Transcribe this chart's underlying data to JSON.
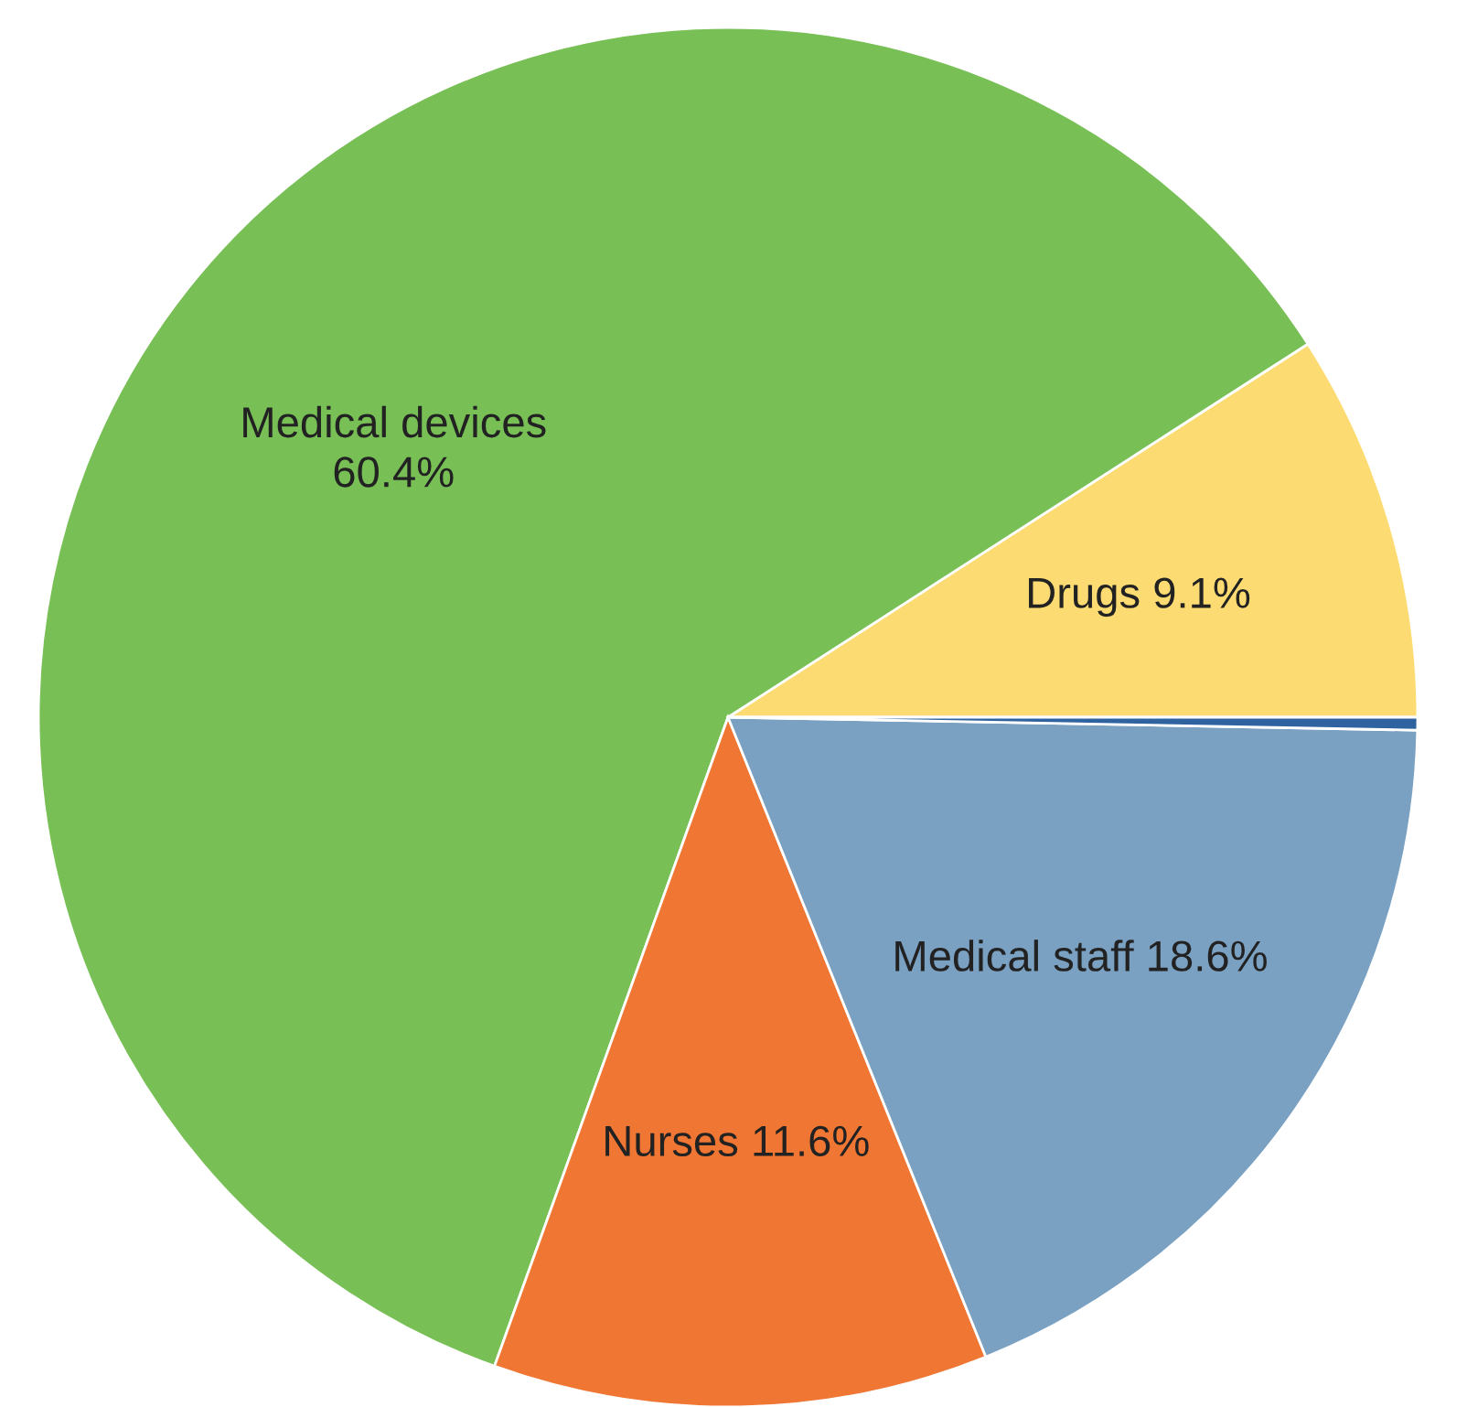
{
  "chart_data": {
    "type": "pie",
    "categories": [
      "Drugs",
      "Medical devices",
      "Nurses",
      "Medical staff",
      null
    ],
    "values": [
      9.1,
      60.4,
      11.6,
      18.6,
      0.3
    ],
    "colors": [
      "#fcdc72",
      "#78c056",
      "#ef7633",
      "#7aa0c2",
      "#2f63a0"
    ],
    "value_labels": [
      "9.1%",
      "60.4%",
      "11.6%",
      "18.6%",
      null
    ],
    "legend": false
  }
}
